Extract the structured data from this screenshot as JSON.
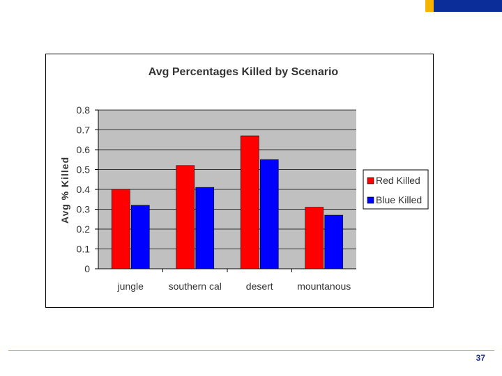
{
  "page_number": "37",
  "colors": {
    "red": "#ff0000",
    "blue": "#0000ff",
    "plot_bg": "#c0c0c0"
  },
  "chart_data": {
    "type": "bar",
    "title": "Avg Percentages Killed by Scenario",
    "ylabel": "Avg % Killed",
    "xlabel": "",
    "categories": [
      "jungle",
      "southern cal",
      "desert",
      "mountanous"
    ],
    "series": [
      {
        "name": "Red Killed",
        "values": [
          0.4,
          0.52,
          0.67,
          0.31
        ]
      },
      {
        "name": "Blue Killed",
        "values": [
          0.32,
          0.41,
          0.55,
          0.27
        ]
      }
    ],
    "ylim": [
      0,
      0.8
    ],
    "yticks": [
      "0",
      "0.1",
      "0.2",
      "0.3",
      "0.4",
      "0.5",
      "0.6",
      "0.7",
      "0.8"
    ],
    "grid": true,
    "legend": "right"
  }
}
